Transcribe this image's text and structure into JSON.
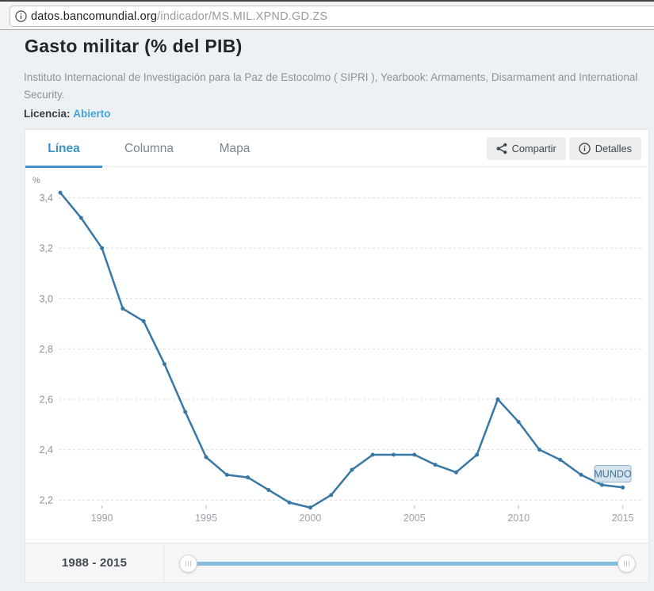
{
  "browser": {
    "url_host": "datos.bancomundial.org",
    "url_path": "/indicador/MS.MIL.XPND.GD.ZS"
  },
  "page": {
    "title": "Gasto militar (% del PIB)",
    "source": "Instituto Internacional de Investigación para la Paz de Estocolmo ( SIPRI ), Yearbook: Armaments, Disarmament and International Security.",
    "license_label": "Licencia:",
    "license_value": "Abierto"
  },
  "tabs": [
    {
      "label": "Línea",
      "active": true
    },
    {
      "label": "Columna",
      "active": false
    },
    {
      "label": "Mapa",
      "active": false
    }
  ],
  "actions": {
    "share_label": "Compartir",
    "details_label": "Detalles"
  },
  "chart_data": {
    "type": "line",
    "title": "Gasto militar (% del PIB)",
    "ylabel": "%",
    "xlabel": "",
    "grid": "horizontal-dashed",
    "legend_position": "end-of-line-annotation",
    "ylim": [
      2.1,
      3.5
    ],
    "xlim": [
      1987,
      2016
    ],
    "yticks": {
      "values": [
        2.2,
        2.4,
        2.6,
        2.8,
        3.0,
        3.2,
        3.4
      ],
      "labels": [
        "2,2",
        "2,4",
        "2,6",
        "2,8",
        "3,0",
        "3,2",
        "3,4"
      ]
    },
    "xticks": [
      1990,
      1995,
      2000,
      2005,
      2010,
      2015
    ],
    "series": [
      {
        "name": "MUNDO",
        "x": [
          1988,
          1989,
          1990,
          1991,
          1992,
          1993,
          1994,
          1995,
          1996,
          1997,
          1998,
          1999,
          2000,
          2001,
          2002,
          2003,
          2004,
          2005,
          2006,
          2007,
          2008,
          2009,
          2010,
          2011,
          2012,
          2013,
          2014,
          2015
        ],
        "values": [
          3.42,
          3.32,
          3.2,
          2.96,
          2.91,
          2.74,
          2.55,
          2.37,
          2.3,
          2.29,
          2.24,
          2.19,
          2.17,
          2.22,
          2.32,
          2.38,
          2.38,
          2.38,
          2.34,
          2.31,
          2.38,
          2.6,
          2.51,
          2.4,
          2.36,
          2.3,
          2.26,
          2.25
        ]
      }
    ],
    "annotation": {
      "text": "MUNDO"
    },
    "colors": {
      "line": "#3878a6",
      "annotation_bg": "#d7e3ee",
      "annotation_border": "#8fb0cc"
    }
  },
  "footer": {
    "range_label": "1988 - 2015"
  },
  "icons": {
    "info": "info-icon",
    "share": "share-icon",
    "details_info": "info-circle-icon",
    "grip": "grip-lines-icon"
  }
}
